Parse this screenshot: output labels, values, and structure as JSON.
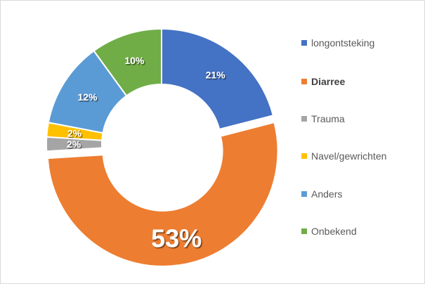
{
  "chart_data": {
    "type": "pie",
    "style": "donut",
    "title": "",
    "slices": [
      {
        "name": "longontsteking",
        "value": 21,
        "label": "21%",
        "color": "#4472c4"
      },
      {
        "name": "Diarree",
        "value": 53,
        "label": "53%",
        "color": "#ed7d31",
        "exploded": true,
        "emphasized": true
      },
      {
        "name": "Trauma",
        "value": 2,
        "label": "2%",
        "color": "#a5a5a5"
      },
      {
        "name": "Navel/gewrichten",
        "value": 2,
        "label": "2%",
        "color": "#ffc000"
      },
      {
        "name": "Anders",
        "value": 12,
        "label": "12%",
        "color": "#5b9bd5"
      },
      {
        "name": "Onbekend",
        "value": 10,
        "label": "10%",
        "color": "#70ad47"
      }
    ],
    "legend": {
      "position": "right",
      "items": [
        {
          "label": "longontsteking",
          "color": "#4472c4"
        },
        {
          "label": "Diarree",
          "color": "#ed7d31"
        },
        {
          "label": "Trauma",
          "color": "#a5a5a5"
        },
        {
          "label": "Navel/gewrichten",
          "color": "#ffc000"
        },
        {
          "label": "Anders",
          "color": "#5b9bd5"
        },
        {
          "label": "Onbekend",
          "color": "#70ad47"
        }
      ]
    }
  }
}
